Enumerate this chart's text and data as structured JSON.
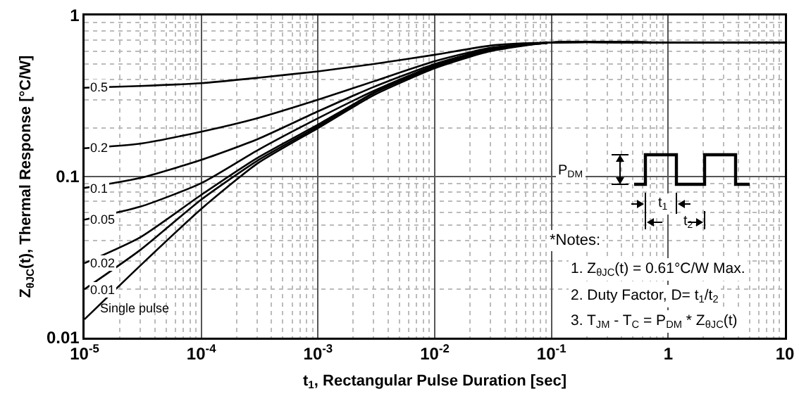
{
  "chart_data": {
    "type": "line",
    "xlabel": "t$_{1}$, Rectangular Pulse Duration [sec]",
    "ylabel": "Z$_{θJC}$(t), Thermal Response [°C/W]",
    "x": [
      1e-05,
      3e-05,
      0.0001,
      0.0003,
      0.001,
      0.003,
      0.01,
      0.03,
      0.1,
      1,
      10
    ],
    "series": [
      {
        "name": "0.5",
        "color": "#000000",
        "values": [
          0.356,
          0.365,
          0.38,
          0.41,
          0.45,
          0.5,
          0.57,
          0.65,
          0.68,
          0.68,
          0.68
        ]
      },
      {
        "name": "0.2",
        "color": "#000000",
        "values": [
          0.15,
          0.16,
          0.19,
          0.23,
          0.3,
          0.39,
          0.52,
          0.63,
          0.68,
          0.68,
          0.68
        ]
      },
      {
        "name": "0.1",
        "color": "#000000",
        "values": [
          0.085,
          0.098,
          0.127,
          0.17,
          0.254,
          0.36,
          0.5,
          0.62,
          0.68,
          0.68,
          0.68
        ]
      },
      {
        "name": "0.05",
        "color": "#000000",
        "values": [
          0.054,
          0.065,
          0.091,
          0.145,
          0.23,
          0.34,
          0.49,
          0.61,
          0.68,
          0.68,
          0.68
        ]
      },
      {
        "name": "0.02",
        "color": "#000000",
        "values": [
          0.029,
          0.042,
          0.077,
          0.13,
          0.21,
          0.33,
          0.48,
          0.61,
          0.68,
          0.68,
          0.68
        ]
      },
      {
        "name": "0.01",
        "color": "#000000",
        "values": [
          0.02,
          0.035,
          0.072,
          0.125,
          0.205,
          0.33,
          0.48,
          0.61,
          0.68,
          0.68,
          0.68
        ]
      },
      {
        "name": "Single pulse",
        "color": "#000000",
        "values": [
          0.013,
          0.028,
          0.063,
          0.12,
          0.2,
          0.32,
          0.47,
          0.6,
          0.68,
          0.68,
          0.68
        ]
      }
    ],
    "xlim": [
      1e-05,
      10
    ],
    "ylim": [
      0.01,
      1
    ],
    "xticks": [
      {
        "value": 1e-05,
        "label": "10$^{-5}$"
      },
      {
        "value": 0.0001,
        "label": "10$^{-4}$"
      },
      {
        "value": 0.001,
        "label": "10$^{-3}$"
      },
      {
        "value": 0.01,
        "label": "10$^{-2}$"
      },
      {
        "value": 0.1,
        "label": "10$^{-1}$"
      },
      1,
      10
    ],
    "yticks": [
      0.01,
      0.1,
      1
    ],
    "log": "xy",
    "grid": true,
    "marker": "none",
    "line_style": "solid",
    "annotations": [
      "P$_{DM}$",
      "t$_{1}$",
      "t$_{2}$",
      "*Notes:",
      "1. Z$_{θJC}$(t) = 0.61°C/W Max.",
      "2. Duty Factor, D= t$_{1}$/t$_{2}$",
      "3. T$_{JM}$ - T$_{C}$ = P$_{DM}$ * Z$_{θJC}$(t)"
    ]
  }
}
